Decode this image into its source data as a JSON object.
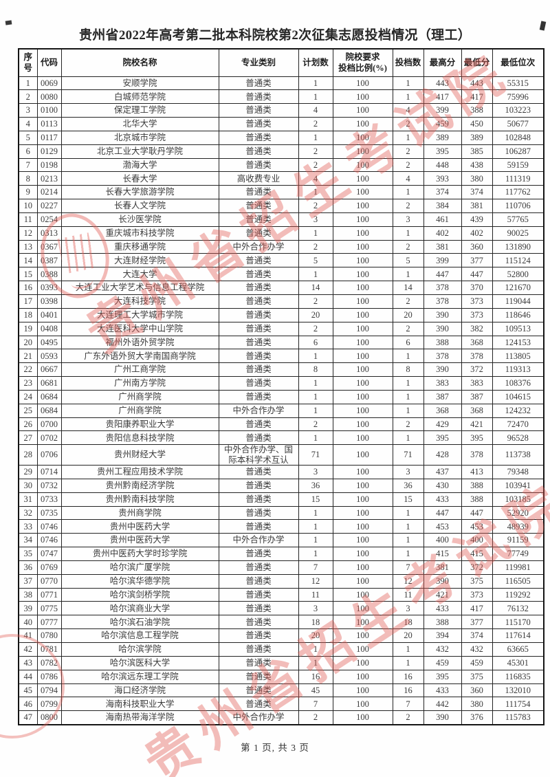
{
  "title": "贵州省2022年高考第二批本科院校第2次征集志愿投档情况（理工）",
  "footer": {
    "page_indicator": "第 1 页, 共 3 页"
  },
  "watermark": {
    "text": "贵州省招生考试院",
    "color": "#E25C54"
  },
  "table": {
    "headers": [
      "序号",
      "代码",
      "院校名称",
      "专业类别",
      "计划数",
      "院校要求|投档比例(%)",
      "投档数",
      "最高分",
      "最低分",
      "最低位次"
    ],
    "rows": [
      [
        "1",
        "0069",
        "安顺学院",
        "普通类",
        "1",
        "100",
        "1",
        "443",
        "443",
        "55315"
      ],
      [
        "2",
        "0080",
        "白城师范学院",
        "普通类",
        "1",
        "100",
        "1",
        "417",
        "417",
        "75996"
      ],
      [
        "3",
        "0100",
        "保定理工学院",
        "普通类",
        "4",
        "100",
        "4",
        "399",
        "388",
        "103223"
      ],
      [
        "4",
        "0113",
        "北华大学",
        "普通类",
        "2",
        "100",
        "2",
        "459",
        "450",
        "50677"
      ],
      [
        "5",
        "0117",
        "北京城市学院",
        "普通类",
        "1",
        "100",
        "1",
        "389",
        "389",
        "102848"
      ],
      [
        "6",
        "0129",
        "北京工业大学耿丹学院",
        "普通类",
        "2",
        "100",
        "2",
        "395",
        "385",
        "106287"
      ],
      [
        "7",
        "0198",
        "渤海大学",
        "普通类",
        "2",
        "100",
        "2",
        "448",
        "438",
        "59159"
      ],
      [
        "8",
        "0213",
        "长春大学",
        "高收费专业",
        "4",
        "100",
        "4",
        "393",
        "380",
        "111319"
      ],
      [
        "9",
        "0214",
        "长春大学旅游学院",
        "普通类",
        "1",
        "100",
        "1",
        "374",
        "374",
        "117762"
      ],
      [
        "10",
        "0227",
        "长春人文学院",
        "普通类",
        "2",
        "100",
        "2",
        "384",
        "381",
        "110706"
      ],
      [
        "11",
        "0254",
        "长沙医学院",
        "普通类",
        "3",
        "100",
        "3",
        "461",
        "439",
        "57765"
      ],
      [
        "12",
        "0313",
        "重庆城市科技学院",
        "普通类",
        "1",
        "100",
        "1",
        "402",
        "402",
        "90025"
      ],
      [
        "13",
        "0367",
        "重庆移通学院",
        "中外合作办学",
        "2",
        "100",
        "2",
        "381",
        "360",
        "131890"
      ],
      [
        "14",
        "0387",
        "大连财经学院",
        "普通类",
        "5",
        "100",
        "5",
        "399",
        "377",
        "115124"
      ],
      [
        "15",
        "0388",
        "大连大学",
        "普通类",
        "1",
        "100",
        "1",
        "447",
        "447",
        "52800"
      ],
      [
        "16",
        "0393",
        "大连工业大学艺术与信息工程学院",
        "普通类",
        "14",
        "100",
        "14",
        "378",
        "370",
        "121670"
      ],
      [
        "17",
        "0398",
        "大连科技学院",
        "普通类",
        "2",
        "100",
        "2",
        "378",
        "373",
        "119044"
      ],
      [
        "18",
        "0401",
        "大连理工大学城市学院",
        "普通类",
        "20",
        "100",
        "20",
        "390",
        "373",
        "118646"
      ],
      [
        "19",
        "0408",
        "大连医科大学中山学院",
        "普通类",
        "2",
        "100",
        "2",
        "390",
        "382",
        "109513"
      ],
      [
        "20",
        "0495",
        "福州外语外贸学院",
        "普通类",
        "6",
        "100",
        "6",
        "388",
        "368",
        "124153"
      ],
      [
        "21",
        "0593",
        "广东外语外贸大学南国商学院",
        "普通类",
        "1",
        "100",
        "1",
        "378",
        "378",
        "113805"
      ],
      [
        "22",
        "0667",
        "广州工商学院",
        "普通类",
        "8",
        "100",
        "8",
        "390",
        "372",
        "119313"
      ],
      [
        "23",
        "0681",
        "广州南方学院",
        "普通类",
        "1",
        "100",
        "1",
        "383",
        "383",
        "108376"
      ],
      [
        "24",
        "0684",
        "广州商学院",
        "普通类",
        "1",
        "100",
        "1",
        "387",
        "387",
        "104615"
      ],
      [
        "25",
        "0684",
        "广州商学院",
        "中外合作办学",
        "1",
        "100",
        "1",
        "368",
        "368",
        "124232"
      ],
      [
        "26",
        "0700",
        "贵阳康养职业大学",
        "普通类",
        "2",
        "100",
        "2",
        "429",
        "421",
        "72470"
      ],
      [
        "27",
        "0702",
        "贵阳信息科技学院",
        "普通类",
        "1",
        "100",
        "1",
        "395",
        "395",
        "96528"
      ],
      [
        "28",
        "0706",
        "贵州财经大学",
        "中外合作办学、国际本科学术互认",
        "71",
        "100",
        "71",
        "428",
        "378",
        "113738"
      ],
      [
        "29",
        "0714",
        "贵州工程应用技术学院",
        "普通类",
        "3",
        "100",
        "3",
        "437",
        "413",
        "79348"
      ],
      [
        "30",
        "0732",
        "贵州黔南经济学院",
        "普通类",
        "36",
        "100",
        "36",
        "430",
        "388",
        "103941"
      ],
      [
        "31",
        "0733",
        "贵州黔南科技学院",
        "普通类",
        "15",
        "100",
        "15",
        "433",
        "388",
        "103185"
      ],
      [
        "32",
        "0735",
        "贵州商学院",
        "普通类",
        "1",
        "100",
        "1",
        "447",
        "447",
        "52920"
      ],
      [
        "33",
        "0746",
        "贵州中医药大学",
        "普通类",
        "1",
        "100",
        "1",
        "453",
        "453",
        "48939"
      ],
      [
        "34",
        "0746",
        "贵州中医药大学",
        "中外合作办学",
        "1",
        "100",
        "1",
        "400",
        "400",
        "91159"
      ],
      [
        "35",
        "0747",
        "贵州中医药大学时珍学院",
        "普通类",
        "1",
        "100",
        "1",
        "415",
        "415",
        "77749"
      ],
      [
        "36",
        "0769",
        "哈尔滨广厦学院",
        "普通类",
        "7",
        "100",
        "7",
        "381",
        "372",
        "119981"
      ],
      [
        "37",
        "0770",
        "哈尔滨华德学院",
        "普通类",
        "12",
        "100",
        "12",
        "390",
        "375",
        "116505"
      ],
      [
        "38",
        "0771",
        "哈尔滨剑桥学院",
        "普通类",
        "11",
        "100",
        "11",
        "421",
        "373",
        "119292"
      ],
      [
        "39",
        "0775",
        "哈尔滨商业大学",
        "普通类",
        "3",
        "100",
        "3",
        "433",
        "417",
        "76132"
      ],
      [
        "40",
        "0777",
        "哈尔滨石油学院",
        "普通类",
        "18",
        "100",
        "18",
        "388",
        "377",
        "115170"
      ],
      [
        "41",
        "0780",
        "哈尔滨信息工程学院",
        "普通类",
        "20",
        "100",
        "20",
        "394",
        "374",
        "117614"
      ],
      [
        "42",
        "0781",
        "哈尔滨学院",
        "普通类",
        "1",
        "100",
        "1",
        "432",
        "432",
        "63665"
      ],
      [
        "43",
        "0782",
        "哈尔滨医科大学",
        "普通类",
        "1",
        "100",
        "1",
        "459",
        "459",
        "45301"
      ],
      [
        "44",
        "0786",
        "哈尔滨远东理工学院",
        "普通类",
        "16",
        "100",
        "16",
        "395",
        "375",
        "116835"
      ],
      [
        "45",
        "0794",
        "海口经济学院",
        "普通类",
        "45",
        "100",
        "16",
        "433",
        "360",
        "132010"
      ],
      [
        "46",
        "0799",
        "海南科技职业大学",
        "普通类",
        "7",
        "100",
        "7",
        "442",
        "380",
        "111754"
      ],
      [
        "47",
        "0800",
        "海南热带海洋学院",
        "中外合作办学",
        "2",
        "100",
        "2",
        "390",
        "376",
        "115783"
      ]
    ]
  }
}
